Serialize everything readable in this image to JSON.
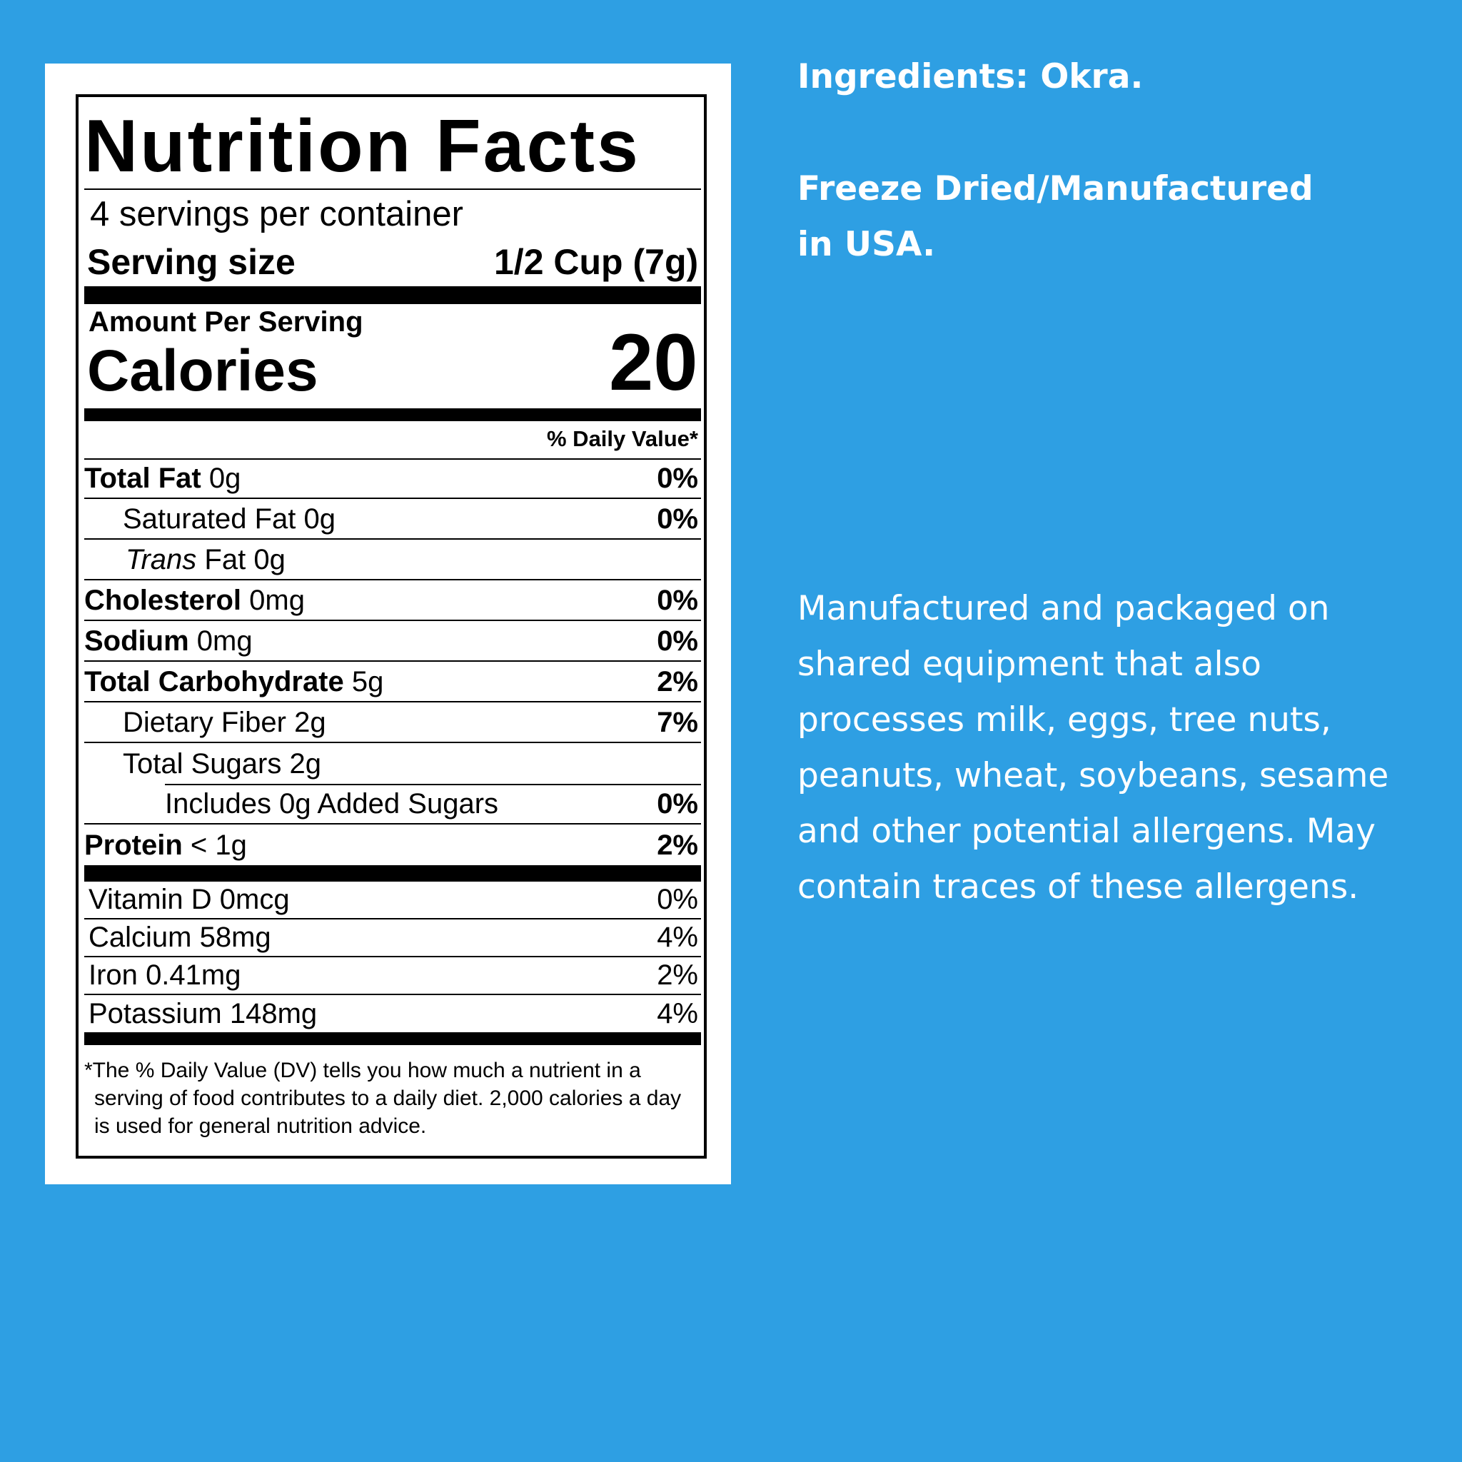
{
  "label": {
    "title": "Nutrition Facts",
    "servings": "4 servings per container",
    "serving_size_label": "Serving size",
    "serving_size_value": "1/2 Cup (7g)",
    "amount_per_serving": "Amount Per Serving",
    "calories_label": "Calories",
    "calories_value": "20",
    "dv_header": "% Daily Value*",
    "nutrients": [
      {
        "name": "Total Fat",
        "amount": "0g",
        "dv": "0%"
      },
      {
        "name": "Saturated Fat",
        "amount": "0g",
        "dv": "0%"
      },
      {
        "name_italic": "Trans",
        "name": "Fat",
        "amount": "0g"
      },
      {
        "name": "Cholesterol",
        "amount": "0mg",
        "dv": "0%"
      },
      {
        "name": "Sodium",
        "amount": "0mg",
        "dv": "0%"
      },
      {
        "name": "Total Carbohydrate",
        "amount": "5g",
        "dv": "2%"
      },
      {
        "name": "Dietary Fiber",
        "amount": "2g",
        "dv": "7%"
      },
      {
        "name": "Total Sugars",
        "amount": "2g"
      },
      {
        "name": "Includes 0g Added Sugars",
        "dv": "0%"
      },
      {
        "name": "Protein",
        "amount": "< 1g",
        "dv": "2%"
      }
    ],
    "vitamins": [
      {
        "name": "Vitamin D",
        "amount": "0mcg",
        "dv": "0%"
      },
      {
        "name": "Calcium",
        "amount": "58mg",
        "dv": "4%"
      },
      {
        "name": "Iron",
        "amount": "0.41mg",
        "dv": "2%"
      },
      {
        "name": "Potassium",
        "amount": "148mg",
        "dv": "4%"
      }
    ],
    "footnote": "*The % Daily Value (DV) tells you how much a nutrient in a serving of food contributes to a daily diet. 2,000 calories a day is used for general nutrition advice."
  },
  "side": {
    "ingredients": "Ingredients: Okra.",
    "origin": "Freeze Dried/Manufactured in USA.",
    "allergens": "Manufactured and packaged on shared equipment that also processes milk, eggs, tree nuts, peanuts, wheat, soybeans, sesame and other potential allergens. May contain traces of these allergens."
  }
}
